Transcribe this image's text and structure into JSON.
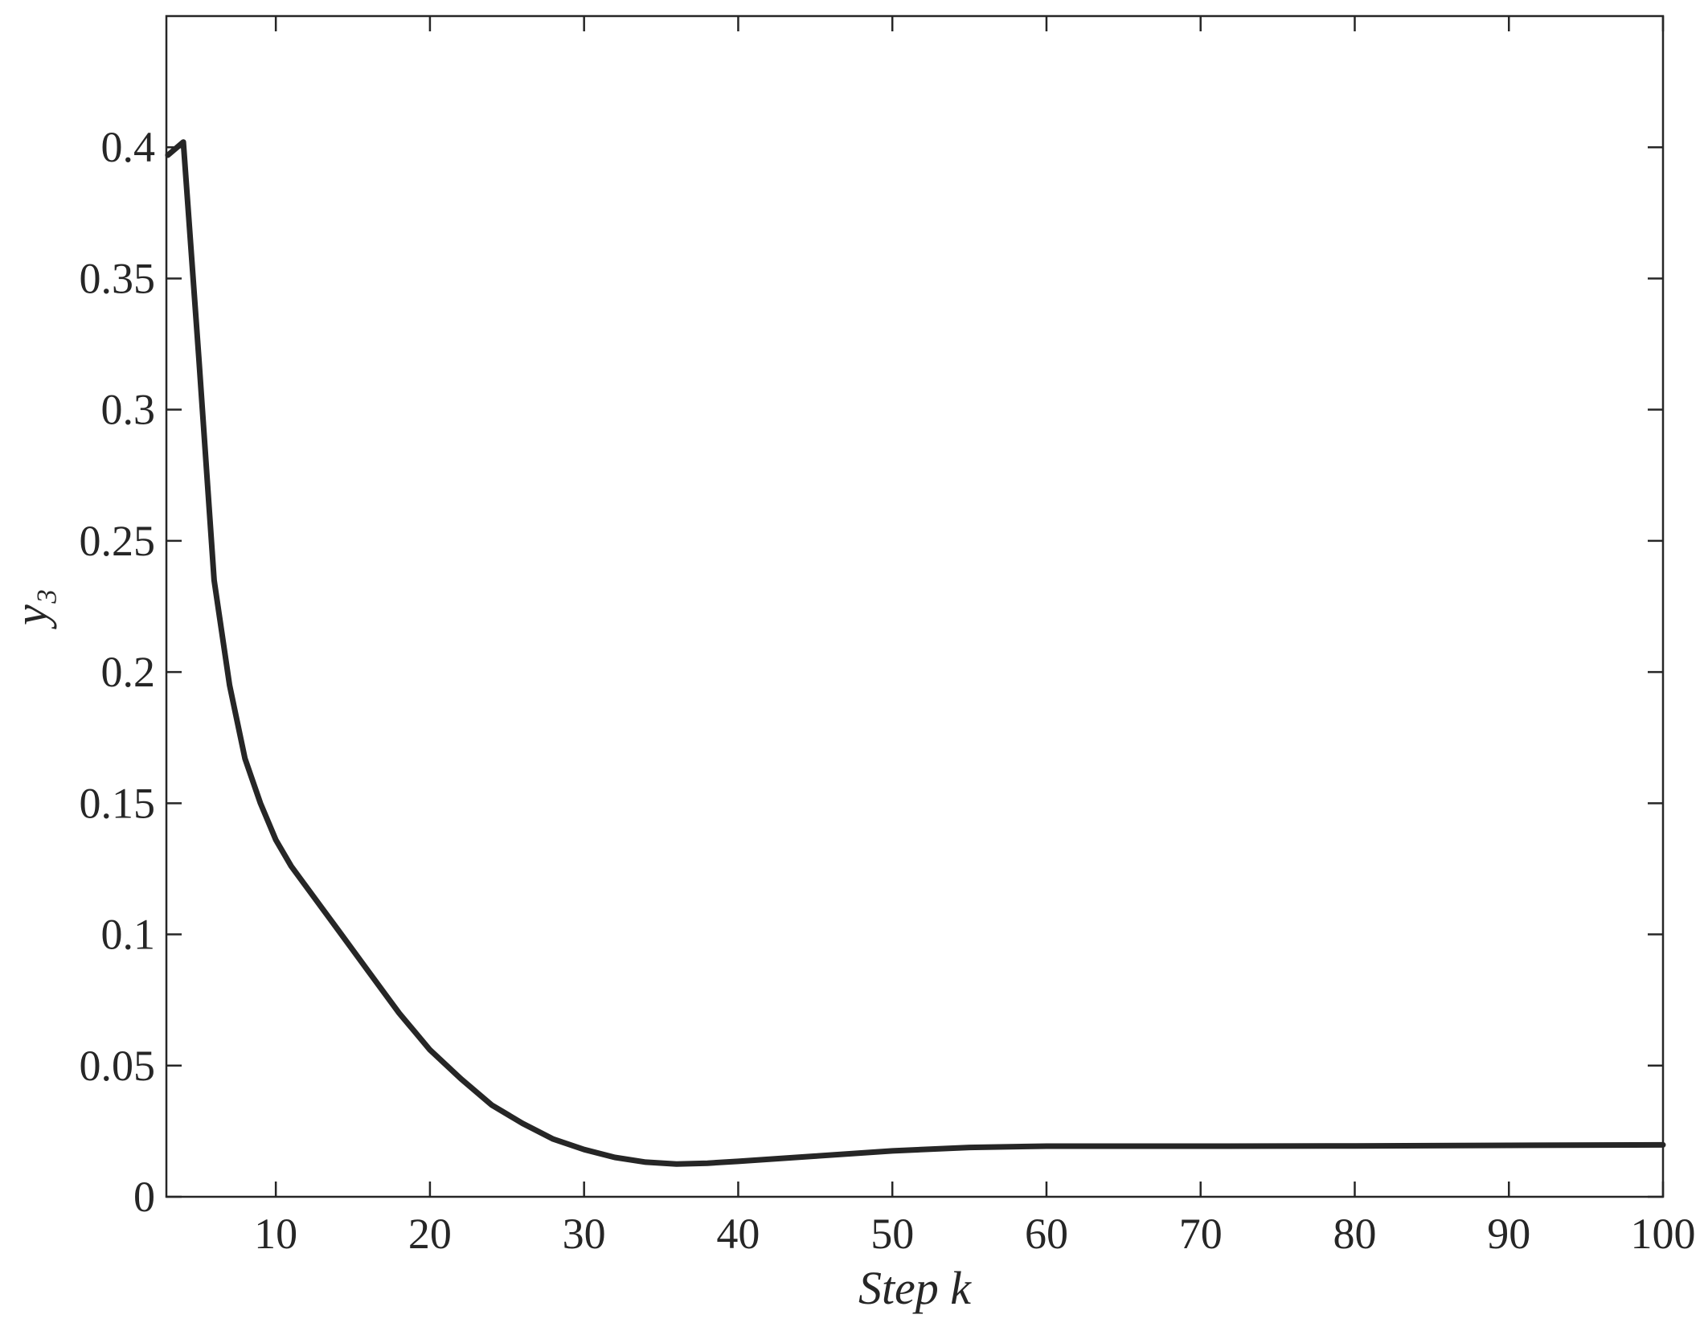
{
  "chart_data": {
    "type": "line",
    "xlabel": "Step k",
    "ylabel": "y₃",
    "x": [
      3,
      4,
      5,
      6,
      7,
      8,
      9,
      10,
      11,
      12,
      13,
      14,
      15,
      16,
      17,
      18,
      19,
      20,
      22,
      24,
      26,
      28,
      30,
      32,
      34,
      36,
      38,
      40,
      45,
      50,
      55,
      60,
      70,
      80,
      90,
      100
    ],
    "series": [
      {
        "name": "y3",
        "color": "#262626",
        "values": [
          0.397,
          0.402,
          0.32,
          0.235,
          0.195,
          0.167,
          0.15,
          0.136,
          0.126,
          0.118,
          0.11,
          0.102,
          0.094,
          0.086,
          0.078,
          0.07,
          0.063,
          0.056,
          0.045,
          0.035,
          0.028,
          0.022,
          0.018,
          0.015,
          0.0132,
          0.0125,
          0.0128,
          0.0135,
          0.0155,
          0.0175,
          0.0188,
          0.0193,
          0.0193,
          0.0194,
          0.0196,
          0.0198
        ]
      }
    ],
    "xlim": [
      2.9,
      100
    ],
    "ylim": [
      0,
      0.45
    ],
    "xticks": [
      10,
      20,
      30,
      40,
      50,
      60,
      70,
      80,
      90,
      100
    ],
    "yticks": [
      0,
      0.05,
      0.1,
      0.15,
      0.2,
      0.25,
      0.3,
      0.35,
      0.4
    ],
    "grid": false
  }
}
